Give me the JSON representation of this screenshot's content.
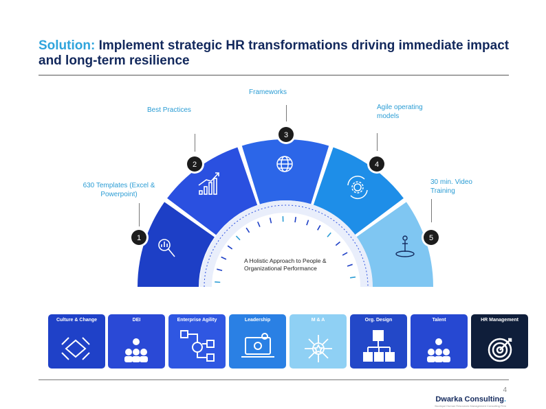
{
  "header": {
    "title_keyword": "Solution:",
    "title_rest": "Implement strategic HR transformations driving immediate impact and long-term resilience"
  },
  "arc": {
    "center_text": "A Holistic Approach to People & Organizational Performance",
    "segments": [
      {
        "number": "1",
        "label": "630 Templates (Excel & Powerpoint)",
        "icon": "magnifier-chart-icon",
        "color": "#1d3fc6"
      },
      {
        "number": "2",
        "label": "Best Practices",
        "icon": "bar-chart-icon",
        "color": "#2a50e0"
      },
      {
        "number": "3",
        "label": "Frameworks",
        "icon": "globe-icon",
        "color": "#2c66e8"
      },
      {
        "number": "4",
        "label": "Agile operating models",
        "icon": "gear-cycle-icon",
        "color": "#1e8ee8"
      },
      {
        "number": "5",
        "label": "30 min. Video Training",
        "icon": "person-target-icon",
        "color": "#7fc6f2"
      }
    ]
  },
  "cards": [
    {
      "title": "Culture & Change",
      "icon": "handshake-icon",
      "color": "#1f41c8"
    },
    {
      "title": "DEI",
      "icon": "team-gear-icon",
      "color": "#2a49d6"
    },
    {
      "title": "Enterprise Agility",
      "icon": "workflow-icon",
      "color": "#2f57e2"
    },
    {
      "title": "Leadership",
      "icon": "laptop-gear-icon",
      "color": "#2a80e4"
    },
    {
      "title": "M & A",
      "icon": "network-star-icon",
      "color": "#8fd0f4"
    },
    {
      "title": "Org. Design",
      "icon": "org-chart-icon",
      "color": "#2348c8"
    },
    {
      "title": "Talent",
      "icon": "team-gear-icon",
      "color": "#2648d2"
    },
    {
      "title": "HR Management",
      "icon": "target-icon",
      "color": "#0f1e3a"
    }
  ],
  "footer": {
    "page_number": "4",
    "brand": "Dwarka Consulting",
    "brand_dot": ".",
    "tagline": "Boutique Human Resources Management Consulting Firm"
  }
}
